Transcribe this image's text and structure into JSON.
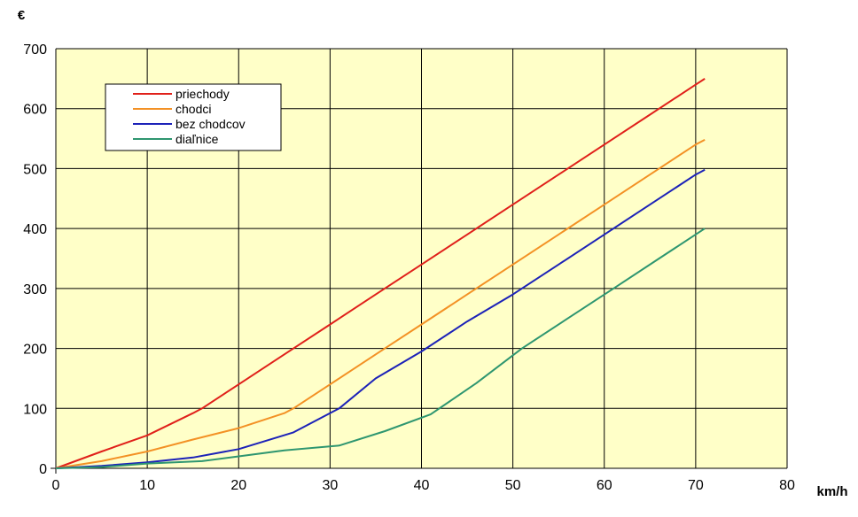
{
  "chart_data": {
    "type": "line",
    "title": "",
    "xlabel": "km/h",
    "ylabel": "€",
    "xlim": [
      0,
      80
    ],
    "ylim": [
      0,
      700
    ],
    "xticks": [
      "0",
      "10",
      "20",
      "30",
      "40",
      "50",
      "60",
      "70",
      "80"
    ],
    "yticks": [
      "0",
      "100",
      "200",
      "300",
      "400",
      "500",
      "600",
      "700"
    ],
    "grid": true,
    "legend_position": "top-left",
    "colors": {
      "plot_background": "#ffffc8",
      "grid": "#000000"
    },
    "series": [
      {
        "name": "priechody",
        "color": "#e0201a",
        "x": [
          0,
          5,
          10,
          15,
          16,
          20,
          25,
          30,
          35,
          40,
          45,
          50,
          55,
          60,
          65,
          70,
          71
        ],
        "y": [
          0,
          28,
          55,
          92,
          100,
          140,
          190,
          240,
          290,
          340,
          390,
          440,
          490,
          540,
          590,
          640,
          650
        ]
      },
      {
        "name": "chodci",
        "color": "#f39125",
        "x": [
          0,
          5,
          10,
          15,
          20,
          25,
          26,
          30,
          35,
          40,
          45,
          50,
          55,
          60,
          65,
          70,
          71
        ],
        "y": [
          0,
          12,
          28,
          48,
          67,
          92,
          100,
          140,
          190,
          240,
          290,
          340,
          390,
          440,
          490,
          540,
          548
        ]
      },
      {
        "name": "bez chodcov",
        "color": "#1c22b8",
        "x": [
          0,
          5,
          10,
          15,
          20,
          26,
          31,
          35,
          40,
          45,
          50,
          55,
          60,
          65,
          70,
          71
        ],
        "y": [
          0,
          4,
          10,
          18,
          32,
          60,
          100,
          150,
          195,
          245,
          290,
          340,
          390,
          440,
          490,
          498
        ]
      },
      {
        "name": "diaľnice",
        "color": "#2e9670",
        "x": [
          0,
          5,
          10,
          16,
          20,
          25,
          31,
          36,
          41,
          46,
          51,
          56,
          61,
          66,
          71
        ],
        "y": [
          0,
          2,
          8,
          12,
          20,
          30,
          38,
          62,
          90,
          142,
          200,
          250,
          300,
          350,
          400
        ]
      }
    ]
  }
}
